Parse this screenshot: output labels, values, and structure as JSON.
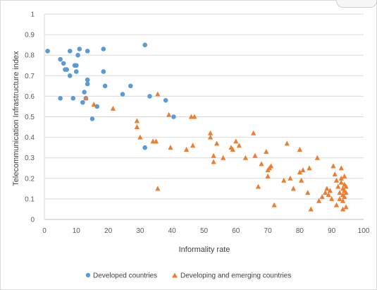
{
  "chart_data": {
    "type": "scatter",
    "xlabel": "Informality rate",
    "ylabel": "Telecommunication Infrastructure index",
    "xlim": [
      0,
      100
    ],
    "ylim": [
      0,
      1
    ],
    "x_ticks": [
      "0",
      "10",
      "20",
      "30",
      "40",
      "50",
      "60",
      "70",
      "80",
      "90",
      "100"
    ],
    "y_ticks": [
      "0",
      "0.1",
      "0.2",
      "0.3",
      "0.4",
      "0.5",
      "0.6",
      "0.7",
      "0.8",
      "0.9",
      "1"
    ],
    "grid": "horizontal",
    "legend_position": "bottom",
    "series": [
      {
        "name": "Developed countries",
        "marker": "circle",
        "color": "#5b9bd5",
        "points": [
          [
            1.0,
            0.82
          ],
          [
            5.0,
            0.78
          ],
          [
            6.0,
            0.76
          ],
          [
            6.5,
            0.73
          ],
          [
            7.0,
            0.73
          ],
          [
            8.0,
            0.82
          ],
          [
            8.0,
            0.7
          ],
          [
            9.5,
            0.75
          ],
          [
            10.0,
            0.75
          ],
          [
            10.0,
            0.72
          ],
          [
            10.5,
            0.8
          ],
          [
            11.0,
            0.83
          ],
          [
            12.0,
            0.57
          ],
          [
            12.5,
            0.62
          ],
          [
            13.0,
            0.59
          ],
          [
            13.5,
            0.82
          ],
          [
            13.5,
            0.66
          ],
          [
            13.5,
            0.68
          ],
          [
            5.0,
            0.59
          ],
          [
            9.0,
            0.59
          ],
          [
            15.0,
            0.49
          ],
          [
            16.5,
            0.55
          ],
          [
            18.5,
            0.83
          ],
          [
            18.5,
            0.72
          ],
          [
            19.0,
            0.65
          ],
          [
            24.5,
            0.61
          ],
          [
            27.0,
            0.65
          ],
          [
            31.5,
            0.85
          ],
          [
            33.0,
            0.6
          ],
          [
            38.0,
            0.58
          ],
          [
            40.5,
            0.5
          ],
          [
            31.5,
            0.35
          ]
        ]
      },
      {
        "name": "Developing and emerging countries",
        "marker": "triangle",
        "color": "#ed7d31",
        "points": [
          [
            13.0,
            0.59
          ],
          [
            15.5,
            0.56
          ],
          [
            21.5,
            0.54
          ],
          [
            29.0,
            0.48
          ],
          [
            29.0,
            0.45
          ],
          [
            30.0,
            0.4
          ],
          [
            34.0,
            0.38
          ],
          [
            35.0,
            0.38
          ],
          [
            35.5,
            0.61
          ],
          [
            39.0,
            0.51
          ],
          [
            39.5,
            0.35
          ],
          [
            46.0,
            0.5
          ],
          [
            47.0,
            0.5
          ],
          [
            46.5,
            0.36
          ],
          [
            44.5,
            0.34
          ],
          [
            35.5,
            0.15
          ],
          [
            52.0,
            0.42
          ],
          [
            52.0,
            0.4
          ],
          [
            53.0,
            0.31
          ],
          [
            53.0,
            0.28
          ],
          [
            54.0,
            0.37
          ],
          [
            56.0,
            0.3
          ],
          [
            58.5,
            0.35
          ],
          [
            59.0,
            0.34
          ],
          [
            60.0,
            0.38
          ],
          [
            61.0,
            0.36
          ],
          [
            63.0,
            0.3
          ],
          [
            65.5,
            0.42
          ],
          [
            66.0,
            0.31
          ],
          [
            67.0,
            0.16
          ],
          [
            68.0,
            0.27
          ],
          [
            69.5,
            0.33
          ],
          [
            70.0,
            0.24
          ],
          [
            70.5,
            0.25
          ],
          [
            70.0,
            0.21
          ],
          [
            71.0,
            0.26
          ],
          [
            72.0,
            0.07
          ],
          [
            75.0,
            0.19
          ],
          [
            76.0,
            0.37
          ],
          [
            77.0,
            0.2
          ],
          [
            78.0,
            0.15
          ],
          [
            80.0,
            0.34
          ],
          [
            80.0,
            0.23
          ],
          [
            81.0,
            0.24
          ],
          [
            80.5,
            0.19
          ],
          [
            82.5,
            0.13
          ],
          [
            83.0,
            0.25
          ],
          [
            83.5,
            0.05
          ],
          [
            85.5,
            0.3
          ],
          [
            86.0,
            0.09
          ],
          [
            87.0,
            0.11
          ],
          [
            88.0,
            0.13
          ],
          [
            88.5,
            0.15
          ],
          [
            89.0,
            0.12
          ],
          [
            89.5,
            0.14
          ],
          [
            90.0,
            0.1
          ],
          [
            90.5,
            0.26
          ],
          [
            91.0,
            0.22
          ],
          [
            91.5,
            0.19
          ],
          [
            91.5,
            0.07
          ],
          [
            92.0,
            0.16
          ],
          [
            92.5,
            0.13
          ],
          [
            92.5,
            0.1
          ],
          [
            93.0,
            0.25
          ],
          [
            93.0,
            0.2
          ],
          [
            93.0,
            0.18
          ],
          [
            93.5,
            0.15
          ],
          [
            93.5,
            0.12
          ],
          [
            93.5,
            0.09
          ],
          [
            93.5,
            0.05
          ],
          [
            94.0,
            0.21
          ],
          [
            94.0,
            0.17
          ],
          [
            94.0,
            0.14
          ],
          [
            94.0,
            0.11
          ],
          [
            94.5,
            0.16
          ],
          [
            94.5,
            0.13
          ],
          [
            94.5,
            0.06
          ]
        ]
      }
    ]
  }
}
